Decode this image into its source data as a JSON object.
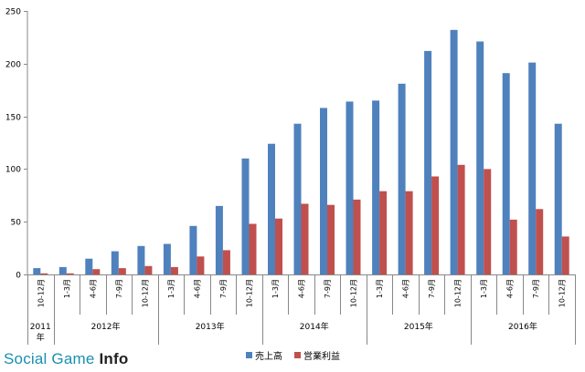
{
  "chart_data": {
    "type": "bar",
    "quarters": [
      "10-12月",
      "1-3月",
      "4-6月",
      "7-9月",
      "10-12月",
      "1-3月",
      "4-6月",
      "7-9月",
      "10-12月",
      "1-3月",
      "4-6月",
      "7-9月",
      "10-12月",
      "1-3月",
      "4-6月",
      "7-9月",
      "10-12月",
      "1-3月",
      "4-6月",
      "7-9月",
      "10-12月"
    ],
    "years": [
      {
        "label": "2011\n年",
        "span": 1
      },
      {
        "label": "2012年",
        "span": 4
      },
      {
        "label": "2013年",
        "span": 4
      },
      {
        "label": "2014年",
        "span": 4
      },
      {
        "label": "2015年",
        "span": 4
      },
      {
        "label": "2016年",
        "span": 4
      }
    ],
    "series": [
      {
        "name": "売上高",
        "color": "#4f81bd",
        "values": [
          6,
          7,
          15,
          22,
          27,
          29,
          46,
          65,
          110,
          124,
          143,
          158,
          164,
          165,
          181,
          212,
          232,
          221,
          191,
          201,
          143
        ]
      },
      {
        "name": "営業利益",
        "color": "#c0504d",
        "values": [
          1,
          1,
          5,
          6,
          8,
          7,
          17,
          23,
          48,
          53,
          67,
          66,
          71,
          79,
          79,
          93,
          104,
          100,
          52,
          62,
          36
        ]
      }
    ],
    "ylim": [
      0,
      250
    ],
    "yticks": [
      0,
      50,
      100,
      150,
      200,
      250
    ],
    "grid": false,
    "legend": "bottom"
  },
  "watermark": {
    "part1": "Social Game ",
    "part2": "Info"
  }
}
